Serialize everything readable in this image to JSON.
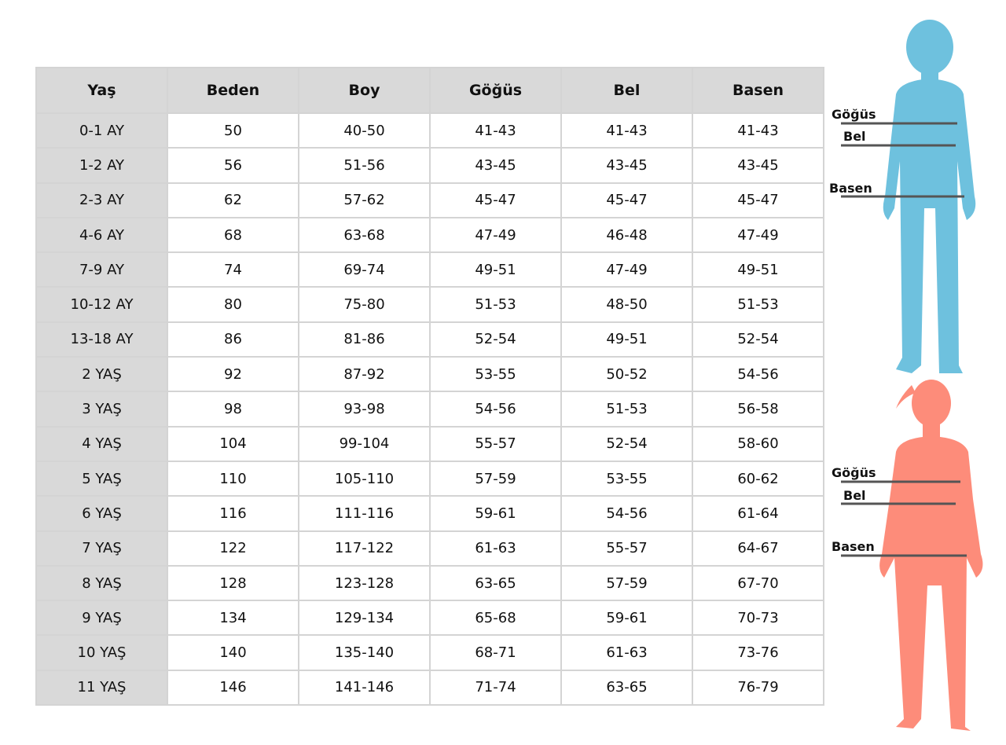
{
  "headers": [
    "Yaş",
    "Beden",
    "Boy",
    "Göğüs",
    "Bel",
    "Basen"
  ],
  "rows": [
    [
      "0-1 AY",
      "50",
      "40-50",
      "41-43",
      "41-43",
      "41-43"
    ],
    [
      "1-2 AY",
      "56",
      "51-56",
      "43-45",
      "43-45",
      "43-45"
    ],
    [
      "2-3 AY",
      "62",
      "57-62",
      "45-47",
      "45-47",
      "45-47"
    ],
    [
      "4-6 AY",
      "68",
      "63-68",
      "47-49",
      "46-48",
      "47-49"
    ],
    [
      "7-9 AY",
      "74",
      "69-74",
      "49-51",
      "47-49",
      "49-51"
    ],
    [
      "10-12 AY",
      "80",
      "75-80",
      "51-53",
      "48-50",
      "51-53"
    ],
    [
      "13-18 AY",
      "86",
      "81-86",
      "52-54",
      "49-51",
      "52-54"
    ],
    [
      "2 YAŞ",
      "92",
      "87-92",
      "53-55",
      "50-52",
      "54-56"
    ],
    [
      "3 YAŞ",
      "98",
      "93-98",
      "54-56",
      "51-53",
      "56-58"
    ],
    [
      "4 YAŞ",
      "104",
      "99-104",
      "55-57",
      "52-54",
      "58-60"
    ],
    [
      "5 YAŞ",
      "110",
      "105-110",
      "57-59",
      "53-55",
      "60-62"
    ],
    [
      "6 YAŞ",
      "116",
      "111-116",
      "59-61",
      "54-56",
      "61-64"
    ],
    [
      "7 YAŞ",
      "122",
      "117-122",
      "61-63",
      "55-57",
      "64-67"
    ],
    [
      "8 YAŞ",
      "128",
      "123-128",
      "63-65",
      "57-59",
      "67-70"
    ],
    [
      "9 YAŞ",
      "134",
      "129-134",
      "65-68",
      "59-61",
      "70-73"
    ],
    [
      "10 YAŞ",
      "140",
      "135-140",
      "68-71",
      "61-63",
      "73-76"
    ],
    [
      "11 YAŞ",
      "146",
      "141-146",
      "71-74",
      "63-65",
      "76-79"
    ]
  ],
  "figures": {
    "boy": {
      "color": "#6ec1de",
      "labels": {
        "chest": "Göğüs",
        "waist": "Bel",
        "hip": "Basen"
      }
    },
    "girl": {
      "color": "#fd8c7a",
      "labels": {
        "chest": "Göğüs",
        "waist": "Bel",
        "hip": "Basen"
      }
    }
  }
}
